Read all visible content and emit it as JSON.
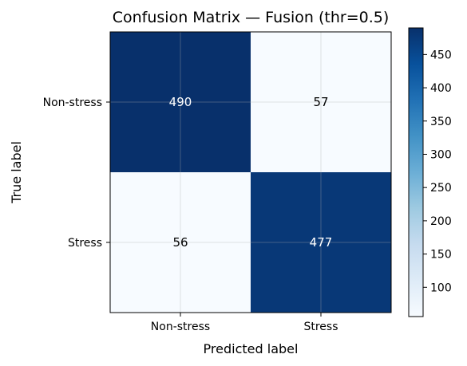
{
  "chart_data": {
    "type": "heatmap",
    "title": "Confusion Matrix — Fusion (thr=0.5)",
    "xlabel": "Predicted label",
    "ylabel": "True label",
    "x_categories": [
      "Non-stress",
      "Stress"
    ],
    "y_categories": [
      "Non-stress",
      "Stress"
    ],
    "values": [
      [
        490,
        57
      ],
      [
        56,
        477
      ]
    ],
    "colormap": "Blues",
    "color_range": [
      56,
      490
    ],
    "colorbar": {
      "ticks": [
        100,
        150,
        200,
        250,
        300,
        350,
        400,
        450
      ],
      "tick_labels": [
        "100",
        "150",
        "200",
        "250",
        "300",
        "350",
        "400",
        "450"
      ]
    },
    "grid": true
  }
}
